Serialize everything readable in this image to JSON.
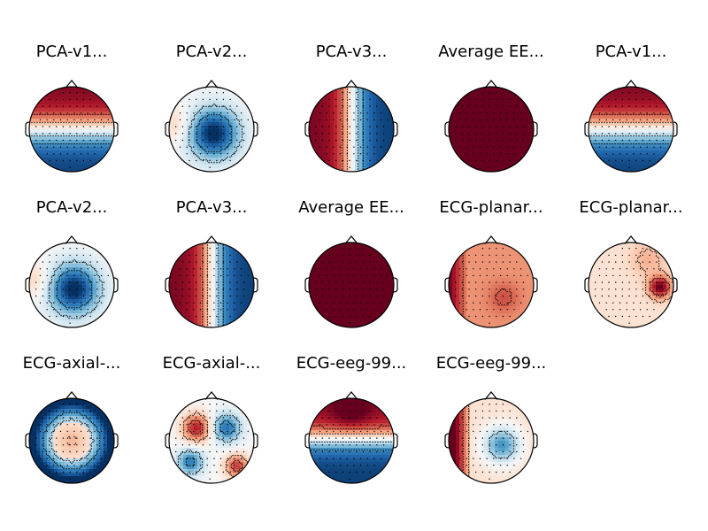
{
  "figure": {
    "colormap": [
      "#053061",
      "#2166ac",
      "#4393c3",
      "#92c5de",
      "#d1e5f0",
      "#f7f7f7",
      "#fddbc7",
      "#f4a582",
      "#d6604d",
      "#b2182b",
      "#67001f"
    ],
    "outline_color": "#000000",
    "sensor_marker_color": "#000000"
  },
  "topomaps": [
    {
      "title": "PCA-v1...",
      "pattern": "ap-dipole",
      "value_range": [
        -1,
        1
      ]
    },
    {
      "title": "PCA-v2...",
      "pattern": "center-negative",
      "value_range": [
        -1,
        1
      ]
    },
    {
      "title": "PCA-v3...",
      "pattern": "left-right",
      "value_range": [
        -1,
        1
      ]
    },
    {
      "title": "Average EE...",
      "pattern": "uniform-positive",
      "value_range": [
        -1,
        1
      ]
    },
    {
      "title": "PCA-v1...",
      "pattern": "ap-dipole",
      "value_range": [
        -1,
        1
      ]
    },
    {
      "title": "PCA-v2...",
      "pattern": "center-negative",
      "value_range": [
        -1,
        1
      ]
    },
    {
      "title": "PCA-v3...",
      "pattern": "left-right",
      "value_range": [
        -1,
        1
      ]
    },
    {
      "title": "Average EE...",
      "pattern": "uniform-positive",
      "value_range": [
        -1,
        1
      ]
    },
    {
      "title": "ECG-planar...",
      "pattern": "positive-left-edge",
      "value_range": [
        -1,
        1
      ]
    },
    {
      "title": "ECG-planar...",
      "pattern": "positive-right-hotspot",
      "value_range": [
        -1,
        1
      ]
    },
    {
      "title": "ECG-axial-...",
      "pattern": "ring-negative",
      "value_range": [
        -1,
        1
      ]
    },
    {
      "title": "ECG-axial-...",
      "pattern": "quadrupole",
      "value_range": [
        -1,
        1
      ]
    },
    {
      "title": "ECG-eeg-99...",
      "pattern": "top-negative-bottom-positive",
      "value_range": [
        -1,
        1
      ]
    },
    {
      "title": "ECG-eeg-99...",
      "pattern": "left-positive-center-negative",
      "value_range": [
        -1,
        1
      ]
    }
  ]
}
